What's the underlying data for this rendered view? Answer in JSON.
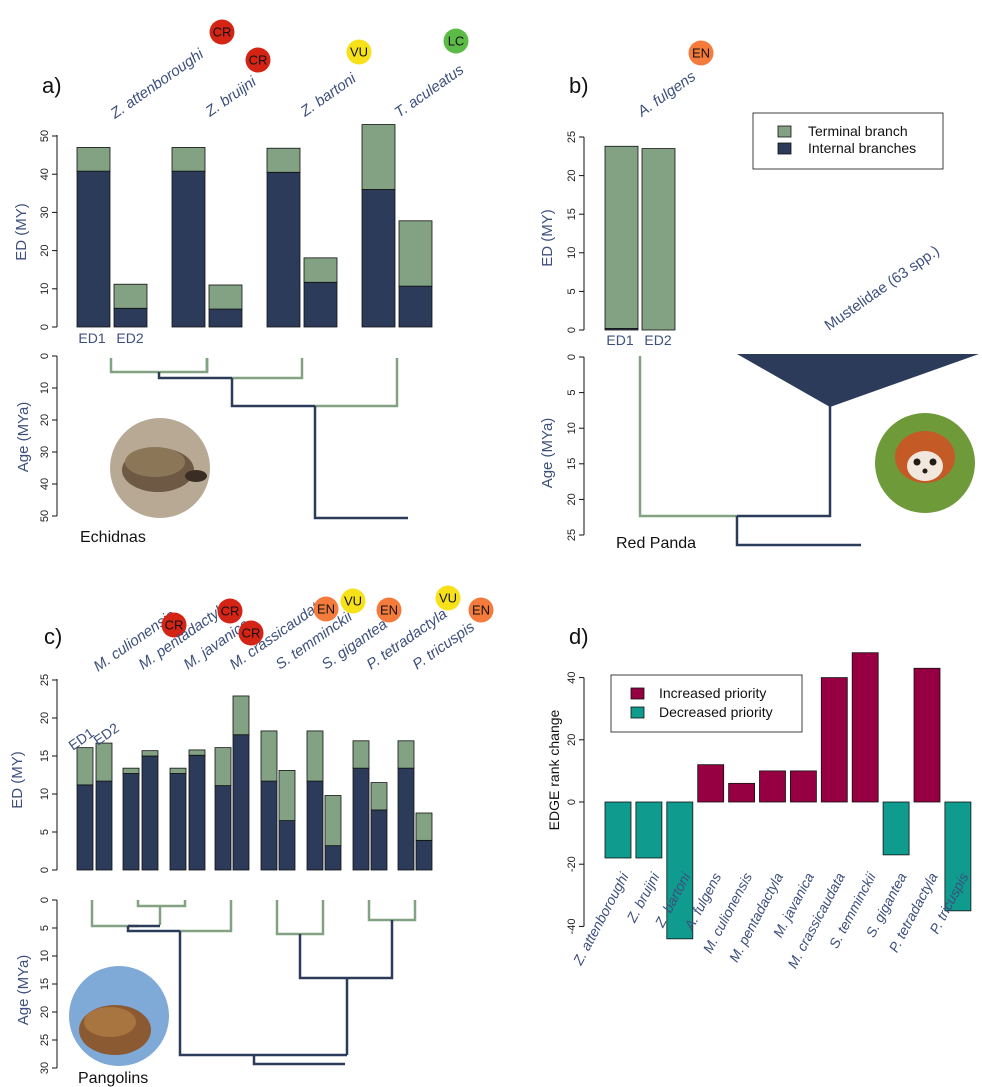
{
  "colors": {
    "terminal": "#82a283",
    "internal": "#2c3b5a",
    "increased": "#960042",
    "decreased": "#0f9b8e",
    "status_CR": "#d42416",
    "status_EN": "#f47b3c",
    "status_VU": "#f7e21a",
    "status_LC": "#5cbb46",
    "label": "#3d4f7c"
  },
  "legend_b": {
    "terminal": "Terminal branch",
    "internal": "Internal branches"
  },
  "legend_d": {
    "increased": "Increased priority",
    "decreased": "Decreased priority"
  },
  "panels": {
    "a": {
      "letter": "a)",
      "group_name": "Echidnas",
      "ylabel_ed": "ED (MY)",
      "ylabel_age": "Age (MYa)",
      "ed1": "ED1",
      "ed2": "ED2"
    },
    "b": {
      "letter": "b)",
      "group_name": "Red Panda",
      "ylabel_ed": "ED (MY)",
      "ylabel_age": "Age (MYa)",
      "ed1": "ED1",
      "ed2": "ED2",
      "clade_label": "Mustelidae (63 spp.)"
    },
    "c": {
      "letter": "c)",
      "group_name": "Pangolins",
      "ylabel_ed": "ED (MY)",
      "ylabel_age": "Age (MYa)",
      "ed1": "ED1",
      "ed2": "ED2"
    },
    "d": {
      "letter": "d)",
      "ylabel": "EDGE rank change"
    }
  },
  "chart_data": [
    {
      "panel": "a",
      "type": "bar",
      "ylabel": "ED (MY)",
      "ylim": [
        0,
        50
      ],
      "series_names": [
        "Internal branches",
        "Terminal branch"
      ],
      "species": [
        {
          "name": "Z. attenboroughi",
          "status": "CR",
          "ed1": {
            "internal": 40.8,
            "terminal": 6.2
          },
          "ed2": {
            "internal": 4.9,
            "terminal": 6.3
          }
        },
        {
          "name": "Z. bruijni",
          "status": "CR",
          "ed1": {
            "internal": 40.8,
            "terminal": 6.2
          },
          "ed2": {
            "internal": 4.7,
            "terminal": 6.3
          }
        },
        {
          "name": "Z. bartoni",
          "status": "VU",
          "ed1": {
            "internal": 40.5,
            "terminal": 6.3
          },
          "ed2": {
            "internal": 11.7,
            "terminal": 6.4
          }
        },
        {
          "name": "T. aculeatus",
          "status": "LC",
          "ed1": {
            "internal": 36.0,
            "terminal": 17.0
          },
          "ed2": {
            "internal": 10.7,
            "terminal": 17.1
          }
        }
      ],
      "age_axis": {
        "label": "Age (MYa)",
        "ticks": [
          0,
          10,
          20,
          30,
          40,
          50
        ]
      }
    },
    {
      "panel": "b",
      "type": "bar",
      "ylabel": "ED (MY)",
      "ylim": [
        0,
        25
      ],
      "species": [
        {
          "name": "A. fulgens",
          "status": "EN",
          "ed1": {
            "internal": 0.2,
            "terminal": 23.6
          },
          "ed2": {
            "internal": 0,
            "terminal": 23.5
          }
        }
      ],
      "age_axis": {
        "label": "Age (MYa)",
        "ticks": [
          0,
          5,
          10,
          15,
          20,
          25
        ]
      }
    },
    {
      "panel": "c",
      "type": "bar",
      "ylabel": "ED (MY)",
      "ylim": [
        0,
        25
      ],
      "species": [
        {
          "name": "M. culionensis",
          "status": "CR",
          "ed1": {
            "internal": 11.2,
            "terminal": 4.9
          },
          "ed2": {
            "internal": 11.7,
            "terminal": 5.0
          }
        },
        {
          "name": "M. pentadactyla",
          "status": "CR",
          "ed1": {
            "internal": 12.7,
            "terminal": 0.7
          },
          "ed2": {
            "internal": 15.0,
            "terminal": 0.7
          }
        },
        {
          "name": "M. javanica",
          "status": "CR",
          "ed1": {
            "internal": 12.7,
            "terminal": 0.7
          },
          "ed2": {
            "internal": 15.1,
            "terminal": 0.7
          }
        },
        {
          "name": "M. crassicaudata",
          "status": "EN",
          "ed1": {
            "internal": 11.1,
            "terminal": 5.0
          },
          "ed2": {
            "internal": 17.8,
            "terminal": 5.1
          }
        },
        {
          "name": "S. temminckii",
          "status": "VU",
          "ed1": {
            "internal": 11.7,
            "terminal": 6.6
          },
          "ed2": {
            "internal": 6.5,
            "terminal": 6.6
          }
        },
        {
          "name": "S. gigantea",
          "status": "EN",
          "ed1": {
            "internal": 11.7,
            "terminal": 6.6
          },
          "ed2": {
            "internal": 3.2,
            "terminal": 6.6
          }
        },
        {
          "name": "P. tetradactyla",
          "status": "VU",
          "ed1": {
            "internal": 13.4,
            "terminal": 3.6
          },
          "ed2": {
            "internal": 7.9,
            "terminal": 3.6
          }
        },
        {
          "name": "P. tricuspis",
          "status": "EN",
          "ed1": {
            "internal": 13.4,
            "terminal": 3.6
          },
          "ed2": {
            "internal": 3.9,
            "terminal": 3.6
          }
        }
      ],
      "age_axis": {
        "label": "Age (MYa)",
        "ticks": [
          0,
          5,
          10,
          15,
          20,
          25,
          30
        ]
      }
    },
    {
      "panel": "d",
      "type": "bar",
      "ylabel": "EDGE rank change",
      "ylim": [
        -44,
        48
      ],
      "yticks": [
        -40,
        -20,
        0,
        20,
        40
      ],
      "categories": [
        "Z. attenboroughi",
        "Z. bruijni",
        "Z. bartoni",
        "A. fulgens",
        "M. culionensis",
        "M. pentadactyla",
        "M. javanica",
        "M. crassicaudata",
        "S. temminckii",
        "S. gigantea",
        "P. tetradactyla",
        "P. tricuspis"
      ],
      "values": [
        -18,
        -18,
        -44,
        12,
        6,
        10,
        10,
        40,
        48,
        -17,
        43,
        -35
      ]
    }
  ]
}
